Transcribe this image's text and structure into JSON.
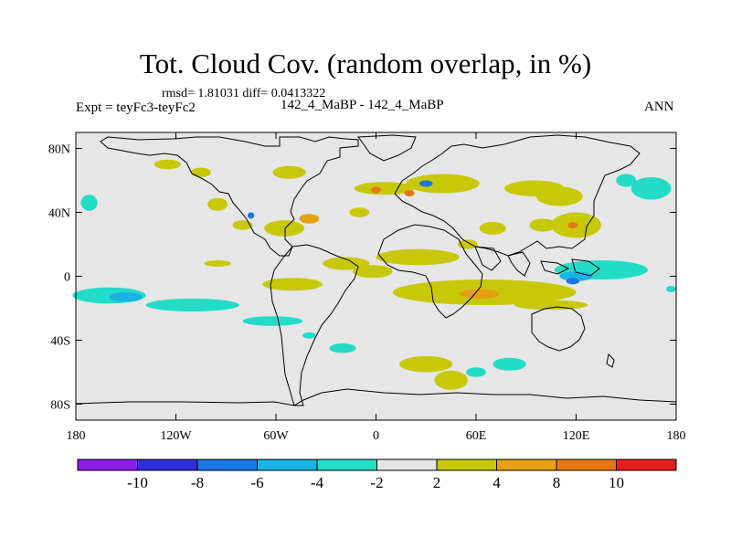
{
  "title": "Tot. Cloud Cov. (random overlap, in %)",
  "stats": "rmsd= 1.81031 diff= 0.0413322",
  "expt": "Expt = teyFc3-teyFc2",
  "case": "142_4_MaBP - 142_4_MaBP",
  "season": "ANN",
  "lat_ticks": [
    {
      "label": "80N",
      "value": 80
    },
    {
      "label": "40N",
      "value": 40
    },
    {
      "label": "0",
      "value": 0
    },
    {
      "label": "40S",
      "value": -40
    },
    {
      "label": "80S",
      "value": -80
    }
  ],
  "lon_ticks": [
    {
      "label": "180",
      "value": -180
    },
    {
      "label": "120W",
      "value": -120
    },
    {
      "label": "60W",
      "value": -60
    },
    {
      "label": "0",
      "value": 0
    },
    {
      "label": "60E",
      "value": 60
    },
    {
      "label": "120E",
      "value": 120
    },
    {
      "label": "180",
      "value": 180
    }
  ],
  "colorbar": {
    "bins": [
      {
        "color": "#8a1ce6"
      },
      {
        "color": "#2f2fd8"
      },
      {
        "color": "#1a78e0"
      },
      {
        "color": "#19b4e6"
      },
      {
        "color": "#22dcc8"
      },
      {
        "color": "#e6e6e6"
      },
      {
        "color": "#c8c80a"
      },
      {
        "color": "#e6a014"
      },
      {
        "color": "#e67814"
      },
      {
        "color": "#e61e1e"
      }
    ],
    "labels": [
      "-10",
      "-8",
      "-6",
      "-4",
      "-2",
      "2",
      "4",
      "8",
      "10"
    ]
  },
  "anomalies": [
    {
      "lon": -160,
      "lat": -12,
      "rx": 22,
      "ry": 5,
      "color": "#22dcc8"
    },
    {
      "lon": -150,
      "lat": -13,
      "rx": 10,
      "ry": 3,
      "color": "#19b4e6"
    },
    {
      "lon": -110,
      "lat": -18,
      "rx": 28,
      "ry": 4,
      "color": "#22dcc8"
    },
    {
      "lon": -62,
      "lat": -28,
      "rx": 18,
      "ry": 3,
      "color": "#22dcc8"
    },
    {
      "lon": -172,
      "lat": 46,
      "rx": 5,
      "ry": 5,
      "color": "#22dcc8"
    },
    {
      "lon": -95,
      "lat": 8,
      "rx": 8,
      "ry": 2,
      "color": "#c8c80a"
    },
    {
      "lon": -50,
      "lat": -5,
      "rx": 18,
      "ry": 4,
      "color": "#c8c80a"
    },
    {
      "lon": -18,
      "lat": 8,
      "rx": 14,
      "ry": 4,
      "color": "#c8c80a"
    },
    {
      "lon": -55,
      "lat": 30,
      "rx": 12,
      "ry": 5,
      "color": "#c8c80a"
    },
    {
      "lon": -40,
      "lat": 36,
      "rx": 6,
      "ry": 3,
      "color": "#e6a014"
    },
    {
      "lon": -10,
      "lat": 40,
      "rx": 6,
      "ry": 3,
      "color": "#c8c80a"
    },
    {
      "lon": 25,
      "lat": 12,
      "rx": 25,
      "ry": 5,
      "color": "#c8c80a"
    },
    {
      "lon": -2,
      "lat": 3,
      "rx": 12,
      "ry": 4,
      "color": "#c8c80a"
    },
    {
      "lon": 65,
      "lat": -10,
      "rx": 55,
      "ry": 8,
      "color": "#c8c80a"
    },
    {
      "lon": 62,
      "lat": -11,
      "rx": 12,
      "ry": 3,
      "color": "#e6a014"
    },
    {
      "lon": 105,
      "lat": -18,
      "rx": 22,
      "ry": 3,
      "color": "#c8c80a"
    },
    {
      "lon": 135,
      "lat": 4,
      "rx": 28,
      "ry": 6,
      "color": "#22dcc8"
    },
    {
      "lon": 120,
      "lat": 0,
      "rx": 10,
      "ry": 3,
      "color": "#19b4e6"
    },
    {
      "lon": 118,
      "lat": -3,
      "rx": 4,
      "ry": 2,
      "color": "#1a78e0"
    },
    {
      "lon": 165,
      "lat": 55,
      "rx": 12,
      "ry": 7,
      "color": "#22dcc8"
    },
    {
      "lon": 150,
      "lat": 60,
      "rx": 6,
      "ry": 4,
      "color": "#22dcc8"
    },
    {
      "lon": 177,
      "lat": -8,
      "rx": 3,
      "ry": 2,
      "color": "#22dcc8"
    },
    {
      "lon": 40,
      "lat": 58,
      "rx": 22,
      "ry": 6,
      "color": "#c8c80a"
    },
    {
      "lon": 5,
      "lat": 55,
      "rx": 18,
      "ry": 4,
      "color": "#c8c80a"
    },
    {
      "lon": 0,
      "lat": 54,
      "rx": 3,
      "ry": 2,
      "color": "#e67814"
    },
    {
      "lon": 20,
      "lat": 52,
      "rx": 3,
      "ry": 2,
      "color": "#e67814"
    },
    {
      "lon": 30,
      "lat": 58,
      "rx": 4,
      "ry": 2,
      "color": "#1a78e0"
    },
    {
      "lon": 95,
      "lat": 55,
      "rx": 18,
      "ry": 5,
      "color": "#c8c80a"
    },
    {
      "lon": 110,
      "lat": 50,
      "rx": 14,
      "ry": 6,
      "color": "#c8c80a"
    },
    {
      "lon": 120,
      "lat": 32,
      "rx": 15,
      "ry": 8,
      "color": "#c8c80a"
    },
    {
      "lon": 118,
      "lat": 32,
      "rx": 3,
      "ry": 2,
      "color": "#e67814"
    },
    {
      "lon": 100,
      "lat": 32,
      "rx": 8,
      "ry": 4,
      "color": "#c8c80a"
    },
    {
      "lon": 70,
      "lat": 30,
      "rx": 8,
      "ry": 4,
      "color": "#c8c80a"
    },
    {
      "lon": 55,
      "lat": 20,
      "rx": 6,
      "ry": 3,
      "color": "#c8c80a"
    },
    {
      "lon": -80,
      "lat": 32,
      "rx": 6,
      "ry": 3,
      "color": "#c8c80a"
    },
    {
      "lon": -75,
      "lat": 38,
      "rx": 2,
      "ry": 2,
      "color": "#1a78e0"
    },
    {
      "lon": -95,
      "lat": 45,
      "rx": 6,
      "ry": 4,
      "color": "#c8c80a"
    },
    {
      "lon": -125,
      "lat": 70,
      "rx": 8,
      "ry": 3,
      "color": "#c8c80a"
    },
    {
      "lon": -105,
      "lat": 65,
      "rx": 6,
      "ry": 3,
      "color": "#c8c80a"
    },
    {
      "lon": -52,
      "lat": 65,
      "rx": 10,
      "ry": 4,
      "color": "#c8c80a"
    },
    {
      "lon": 30,
      "lat": -55,
      "rx": 16,
      "ry": 5,
      "color": "#c8c80a"
    },
    {
      "lon": 45,
      "lat": -65,
      "rx": 10,
      "ry": 6,
      "color": "#c8c80a"
    },
    {
      "lon": 80,
      "lat": -55,
      "rx": 10,
      "ry": 4,
      "color": "#22dcc8"
    },
    {
      "lon": 60,
      "lat": -60,
      "rx": 6,
      "ry": 3,
      "color": "#22dcc8"
    },
    {
      "lon": -20,
      "lat": -45,
      "rx": 8,
      "ry": 3,
      "color": "#22dcc8"
    },
    {
      "lon": -40,
      "lat": -37,
      "rx": 4,
      "ry": 2,
      "color": "#22dcc8"
    }
  ]
}
